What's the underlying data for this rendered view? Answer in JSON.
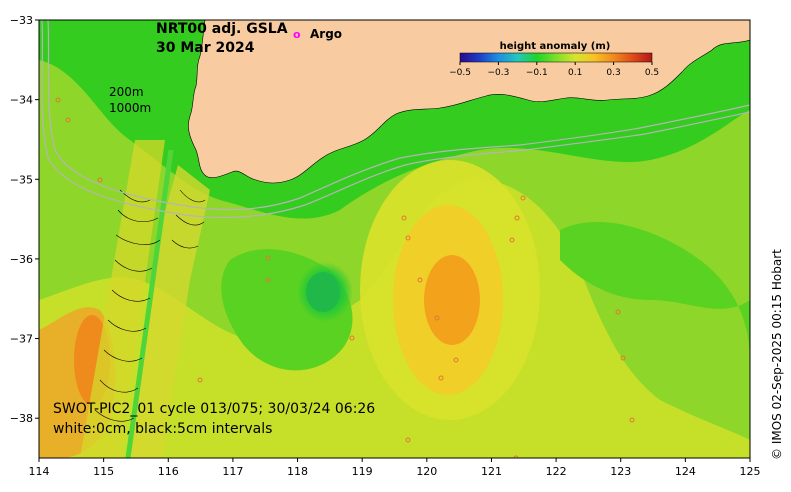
{
  "title": {
    "product": "NRT00 adj. GSLA",
    "date": "30 Mar 2024"
  },
  "argo_legend": {
    "marker": "o",
    "label": "Argo",
    "color": "#ff00ff"
  },
  "colorbar": {
    "title": "height anomaly (m)",
    "ticks": [
      "−0.5",
      "−0.3",
      "−0.1",
      "0.1",
      "0.3",
      "0.5"
    ],
    "colors": [
      "#2a0a8a",
      "#1f3cc8",
      "#1d8fe0",
      "#22c7c0",
      "#1fd42a",
      "#7ce02a",
      "#d6e430",
      "#f7c225",
      "#f08a1f",
      "#e04a18",
      "#b0181a"
    ]
  },
  "contour_key": {
    "shallow": "200m",
    "deep": "1000m"
  },
  "swot_caption": {
    "line1": "SWOT-PIC2_01 cycle 013/075; 30/03/24 06:26",
    "line2": "white:0cm, black:5cm intervals"
  },
  "credit": "© IMOS 02-Sep-2025 00:15 Hobart",
  "chart_data": {
    "type": "heatmap",
    "title": "NRT00 adj. GSLA 30 Mar 2024",
    "xlim": [
      114,
      125
    ],
    "ylim": [
      -38.5,
      -33
    ],
    "x_ticks": [
      "114",
      "115",
      "116",
      "117",
      "118",
      "119",
      "120",
      "121",
      "122",
      "123",
      "124",
      "125"
    ],
    "y_ticks": [
      "−33",
      "−34",
      "−35",
      "−36",
      "−37",
      "−38"
    ],
    "colorbar_range": [
      -0.5,
      0.5
    ],
    "features": {
      "warm_eddy_center": {
        "lon": 120.4,
        "lat": -36.6,
        "value": 0.3
      },
      "cold_eddy_center": {
        "lon": 118.5,
        "lat": -36.4,
        "value": -0.05
      },
      "warm_west_coast": {
        "lon": 114.8,
        "lat": -37.4,
        "value": 0.3
      }
    },
    "grid": false
  }
}
